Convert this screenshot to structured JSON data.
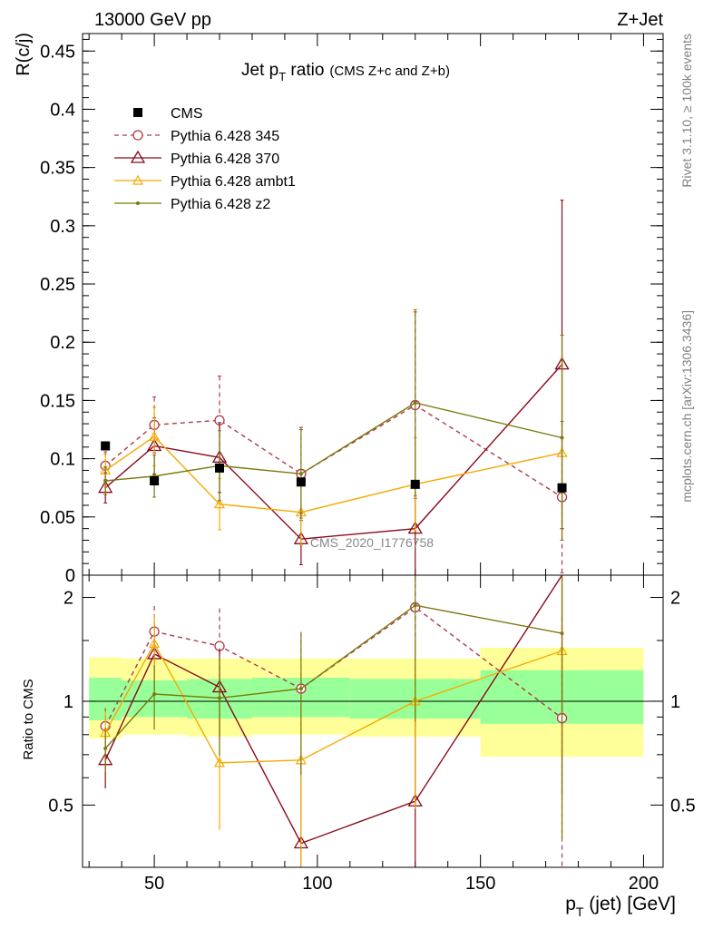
{
  "header": {
    "left": "13000 GeV pp",
    "right": "Z+Jet"
  },
  "side_labels": {
    "rivet": "Rivet 3.1.10, ≥ 100k events",
    "mcplots": "mcplots.cern.ch [arXiv:1306.3436]"
  },
  "watermark": "CMS_2020_I1776758",
  "chart_data": {
    "type": "line",
    "title_main": "Jet p",
    "title_sub": "T",
    "title_tail": " ratio",
    "title_note": "(CMS  Z+c and Z+b)",
    "ylabel": "R(c/j)",
    "ratio_ylabel": "Ratio to CMS",
    "xlabel_main": "p",
    "xlabel_sub": "T",
    "xlabel_tail": " (jet) [GeV]",
    "xlim": [
      28,
      206
    ],
    "ylim": [
      0,
      0.465
    ],
    "ratio_ylim": [
      0.33,
      2.32
    ],
    "ratio_log": true,
    "x_ticks": [
      50,
      100,
      150,
      200
    ],
    "x_tick_labels": [
      "50",
      "100",
      "150",
      "200"
    ],
    "y_ticks": [
      0,
      0.05,
      0.1,
      0.15,
      0.2,
      0.25,
      0.3,
      0.35,
      0.4,
      0.45
    ],
    "y_tick_labels": [
      "0",
      "0.05",
      "0.1",
      "0.15",
      "0.2",
      "0.25",
      "0.3",
      "0.35",
      "0.4",
      "0.45"
    ],
    "ratio_ticks": [
      0.5,
      1,
      2
    ],
    "ratio_tick_labels": [
      "0.5",
      "1",
      "2"
    ],
    "legend_position": "top-left",
    "data": {
      "name": "CMS",
      "x": [
        35,
        50,
        70,
        95,
        130,
        175
      ],
      "y": [
        0.111,
        0.081,
        0.092,
        0.08,
        0.078,
        0.075
      ],
      "xerr_lo": [
        5,
        10,
        10,
        15,
        20,
        25
      ],
      "xerr_hi": [
        5,
        10,
        10,
        15,
        20,
        25
      ],
      "band_inner_lo": [
        0.88,
        0.9,
        0.89,
        0.9,
        0.89,
        0.86
      ],
      "band_inner_hi": [
        1.17,
        1.15,
        1.16,
        1.17,
        1.16,
        1.23
      ],
      "band_outer_lo": [
        0.78,
        0.8,
        0.79,
        0.8,
        0.79,
        0.69
      ],
      "band_outer_hi": [
        1.34,
        1.33,
        1.33,
        1.33,
        1.33,
        1.43
      ]
    },
    "series": [
      {
        "name": "Pythia 6.428 345",
        "color": "#b03a48",
        "marker": "circle",
        "dashed": true,
        "x": [
          35,
          50,
          70,
          95,
          130,
          175
        ],
        "y": [
          0.094,
          0.129,
          0.133,
          0.087,
          0.146,
          0.067
        ],
        "err": [
          0.012,
          0.024,
          0.038,
          0.04,
          0.08,
          0.065
        ]
      },
      {
        "name": "Pythia 6.428 370",
        "color": "#8b0a1a",
        "marker": "triangle",
        "dashed": false,
        "x": [
          35,
          50,
          70,
          95,
          130,
          175
        ],
        "y": [
          0.075,
          0.111,
          0.101,
          0.031,
          0.04,
          0.181
        ],
        "err": [
          0.013,
          0.024,
          0.03,
          0.022,
          0.04,
          0.141
        ]
      },
      {
        "name": "Pythia 6.428 ambt1",
        "color": "#f5a900",
        "marker": "small-triangle",
        "dashed": false,
        "x": [
          35,
          50,
          70,
          95,
          130,
          175
        ],
        "y": [
          0.09,
          0.119,
          0.061,
          0.054,
          0.078,
          0.105
        ],
        "err": [
          0.014,
          0.025,
          0.022,
          0.028,
          0.04,
          0.075
        ]
      },
      {
        "name": "Pythia 6.428 z2",
        "color": "#7a7a10",
        "marker": "dot",
        "dashed": false,
        "x": [
          35,
          50,
          70,
          95,
          130,
          175
        ],
        "y": [
          0.081,
          0.085,
          0.094,
          0.087,
          0.148,
          0.118
        ],
        "err": [
          0.012,
          0.018,
          0.03,
          0.038,
          0.08,
          0.088
        ]
      }
    ]
  }
}
